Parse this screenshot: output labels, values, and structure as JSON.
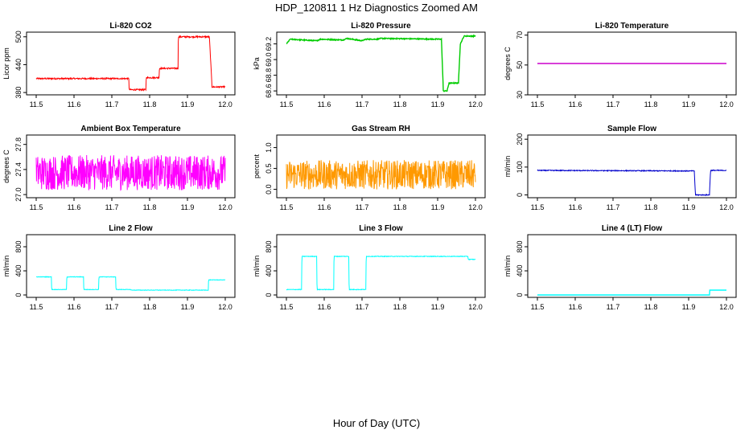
{
  "figure": {
    "title": "HDP_120811  1 Hz Diagnostics Zoomed AM",
    "xlabel": "Hour of Day (UTC)"
  },
  "chart_data": [
    {
      "type": "line",
      "title": "Li-820 CO2",
      "ylabel": "Licor ppm",
      "color": "#ff0000",
      "xlim": [
        11.5,
        12.0
      ],
      "ylim": [
        375,
        510
      ],
      "xticks": [
        "11.5",
        "11.6",
        "11.7",
        "11.8",
        "11.9",
        "12.0"
      ],
      "yticks": [
        "380",
        "440",
        "500"
      ],
      "noise": 1.5,
      "series": [
        {
          "x": [
            11.5,
            11.745,
            11.746,
            11.79,
            11.791,
            11.825,
            11.826,
            11.875,
            11.876,
            11.958,
            11.965,
            12.0
          ],
          "y": [
            410,
            410,
            386,
            386,
            412,
            412,
            432,
            432,
            500,
            500,
            392,
            392
          ]
        }
      ]
    },
    {
      "type": "line",
      "title": "Li-820 Pressure",
      "ylabel": "kPa",
      "color": "#00cc00",
      "xlim": [
        11.5,
        12.0
      ],
      "ylim": [
        68.55,
        69.35
      ],
      "xticks": [
        "11.5",
        "11.6",
        "11.7",
        "11.8",
        "11.9",
        "12.0"
      ],
      "yticks": [
        "68.6",
        "68.8",
        "69.0",
        "69.2"
      ],
      "noise": 0.006,
      "series": [
        {
          "x": [
            11.5,
            11.51,
            11.58,
            11.59,
            11.65,
            11.66,
            11.7,
            11.71,
            11.74,
            11.75,
            11.91,
            11.915,
            11.925,
            11.93,
            11.955,
            11.96,
            11.97,
            12.0
          ],
          "y": [
            69.2,
            69.26,
            69.24,
            69.26,
            69.25,
            69.27,
            69.24,
            69.26,
            69.26,
            69.27,
            69.26,
            68.6,
            68.6,
            68.7,
            68.7,
            69.2,
            69.3,
            69.3
          ]
        }
      ]
    },
    {
      "type": "line",
      "title": "Li-820 Temperature",
      "ylabel": "degrees C",
      "color": "#cc00cc",
      "xlim": [
        11.5,
        12.0
      ],
      "ylim": [
        30,
        72
      ],
      "xticks": [
        "11.5",
        "11.6",
        "11.7",
        "11.8",
        "11.9",
        "12.0"
      ],
      "yticks": [
        "30",
        "50",
        "70"
      ],
      "noise": 0,
      "series": [
        {
          "x": [
            11.5,
            12.0
          ],
          "y": [
            51,
            51
          ]
        }
      ]
    },
    {
      "type": "line",
      "title": "Ambient Box Temperature",
      "ylabel": "degrees C",
      "color": "#ff00ff",
      "xlim": [
        11.5,
        12.0
      ],
      "ylim": [
        26.95,
        27.95
      ],
      "xticks": [
        "11.5",
        "11.6",
        "11.7",
        "11.8",
        "11.9",
        "12.0"
      ],
      "yticks": [
        "27.0",
        "27.4",
        "27.8"
      ],
      "noise": 0.28,
      "series": [
        {
          "x": [
            11.5,
            12.0
          ],
          "y": [
            27.35,
            27.35
          ]
        }
      ]
    },
    {
      "type": "line",
      "title": "Gas Stream RH",
      "ylabel": "percent",
      "color": "#ff9900",
      "xlim": [
        11.5,
        12.0
      ],
      "ylim": [
        -0.2,
        1.3
      ],
      "xticks": [
        "11.5",
        "11.6",
        "11.7",
        "11.8",
        "11.9",
        "12.0"
      ],
      "yticks": [
        "0.0",
        "0.5",
        "1.0"
      ],
      "noise": 0.35,
      "series": [
        {
          "x": [
            11.5,
            12.0
          ],
          "y": [
            0.35,
            0.35
          ]
        }
      ]
    },
    {
      "type": "line",
      "title": "Sample Flow",
      "ylabel": "ml/min",
      "color": "#0000cc",
      "xlim": [
        11.5,
        12.0
      ],
      "ylim": [
        -10,
        215
      ],
      "xticks": [
        "11.5",
        "11.6",
        "11.7",
        "11.8",
        "11.9",
        "12.0"
      ],
      "yticks": [
        "0",
        "100",
        "200"
      ],
      "noise": 1.5,
      "series": [
        {
          "x": [
            11.5,
            11.915,
            11.918,
            11.955,
            11.958,
            12.0
          ],
          "y": [
            88,
            86,
            0,
            0,
            88,
            88
          ]
        }
      ]
    },
    {
      "type": "line",
      "title": "Line 2 Flow",
      "ylabel": "ml/min",
      "color": "#00ffff",
      "xlim": [
        11.5,
        12.0
      ],
      "ylim": [
        -40,
        1000
      ],
      "xticks": [
        "11.5",
        "11.6",
        "11.7",
        "11.8",
        "11.9",
        "12.0"
      ],
      "yticks": [
        "0",
        "400",
        "800"
      ],
      "noise": 4,
      "series": [
        {
          "x": [
            11.5,
            11.54,
            11.541,
            11.58,
            11.581,
            11.625,
            11.626,
            11.665,
            11.666,
            11.71,
            11.711,
            11.75,
            11.751,
            11.955,
            11.956,
            12.0
          ],
          "y": [
            300,
            300,
            90,
            90,
            300,
            300,
            90,
            90,
            300,
            300,
            90,
            90,
            80,
            80,
            250,
            250
          ]
        }
      ]
    },
    {
      "type": "line",
      "title": "Line 3 Flow",
      "ylabel": "ml/min",
      "color": "#00ffff",
      "xlim": [
        11.5,
        12.0
      ],
      "ylim": [
        -40,
        1000
      ],
      "xticks": [
        "11.5",
        "11.6",
        "11.7",
        "11.8",
        "11.9",
        "12.0"
      ],
      "yticks": [
        "0",
        "400",
        "800"
      ],
      "noise": 5,
      "series": [
        {
          "x": [
            11.5,
            11.54,
            11.541,
            11.58,
            11.581,
            11.625,
            11.626,
            11.665,
            11.666,
            11.71,
            11.711,
            11.98,
            11.981,
            12.0
          ],
          "y": [
            90,
            90,
            640,
            640,
            90,
            90,
            640,
            640,
            90,
            90,
            640,
            640,
            590,
            590
          ]
        }
      ]
    },
    {
      "type": "line",
      "title": "Line 4 (LT) Flow",
      "ylabel": "ml/min",
      "color": "#00ffff",
      "xlim": [
        11.5,
        12.0
      ],
      "ylim": [
        -40,
        1000
      ],
      "xticks": [
        "11.5",
        "11.6",
        "11.7",
        "11.8",
        "11.9",
        "12.0"
      ],
      "yticks": [
        "0",
        "400",
        "800"
      ],
      "noise": 0,
      "series": [
        {
          "x": [
            11.5,
            11.955,
            11.956,
            12.0
          ],
          "y": [
            0,
            0,
            80,
            80
          ]
        }
      ]
    }
  ]
}
